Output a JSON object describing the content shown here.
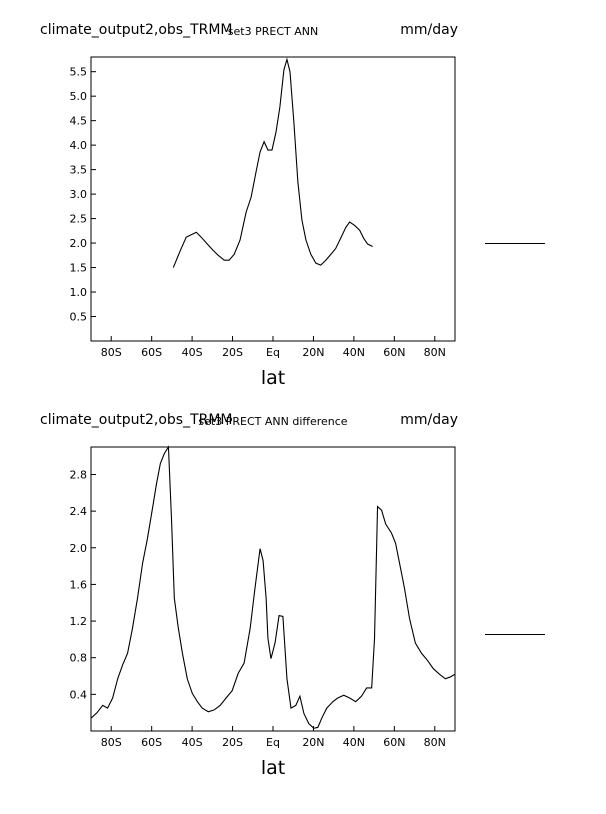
{
  "chart_data": [
    {
      "type": "line",
      "title": "climate_output2,obs_TRMM",
      "subtitle": "set3 PRECT ANN",
      "units": "mm/day",
      "x_label": "lat",
      "xlim": [
        -90,
        90
      ],
      "xticks": [
        {
          "value": -80,
          "label": "80S"
        },
        {
          "value": -60,
          "label": "60S"
        },
        {
          "value": -40,
          "label": "40S"
        },
        {
          "value": -20,
          "label": "20S"
        },
        {
          "value": 0,
          "label": "Eq"
        },
        {
          "value": 20,
          "label": "20N"
        },
        {
          "value": 40,
          "label": "40N"
        },
        {
          "value": 60,
          "label": "60N"
        },
        {
          "value": 80,
          "label": "80N"
        }
      ],
      "ylim": [
        0,
        5.8
      ],
      "yticks": [
        0.5,
        {
          "value": 1,
          "label": "1.0"
        },
        1.5,
        {
          "value": 2,
          "label": "2.0"
        },
        2.5,
        {
          "value": 3,
          "label": "3.0"
        },
        3.5,
        {
          "value": 4,
          "label": "4.0"
        },
        4.5,
        {
          "value": 5,
          "label": "5.0"
        },
        5.5
      ],
      "x": [
        -49.3,
        -45.8,
        -42.9,
        -39.9,
        -37.9,
        -35.5,
        -32.5,
        -29.6,
        -27.1,
        -24.1,
        -21.7,
        -19.2,
        -16.3,
        -13.3,
        -10.8,
        -8.4,
        -6.4,
        -4.4,
        -2.5,
        -0.5,
        1.5,
        3.4,
        5.4,
        6.9,
        8.4,
        10.3,
        12.3,
        14.3,
        16.3,
        18.7,
        21.2,
        23.6,
        26.1,
        28.6,
        31.0,
        33.5,
        36.0,
        37.9,
        40.4,
        42.9,
        44.8,
        46.8,
        49.3
      ],
      "series": [
        {
          "color": "#000000",
          "values": [
            1.5,
            1.85,
            2.12,
            2.18,
            2.22,
            2.12,
            1.98,
            1.85,
            1.75,
            1.65,
            1.65,
            1.77,
            2.06,
            2.63,
            2.94,
            3.45,
            3.86,
            4.07,
            3.9,
            3.9,
            4.27,
            4.78,
            5.54,
            5.75,
            5.5,
            4.48,
            3.25,
            2.47,
            2.06,
            1.77,
            1.59,
            1.55,
            1.65,
            1.77,
            1.89,
            2.1,
            2.32,
            2.43,
            2.36,
            2.26,
            2.1,
            1.98,
            1.93
          ]
        }
      ]
    },
    {
      "type": "line",
      "title": "climate_output2,obs_TRMM",
      "subtitle": "set3 PRECT ANN difference",
      "units": "mm/day",
      "x_label": "lat",
      "xlim": [
        -90,
        90
      ],
      "xticks": [
        {
          "value": -80,
          "label": "80S"
        },
        {
          "value": -60,
          "label": "60S"
        },
        {
          "value": -40,
          "label": "40S"
        },
        {
          "value": -20,
          "label": "20S"
        },
        {
          "value": 0,
          "label": "Eq"
        },
        {
          "value": 20,
          "label": "20N"
        },
        {
          "value": 40,
          "label": "40N"
        },
        {
          "value": 60,
          "label": "60N"
        },
        {
          "value": 80,
          "label": "80N"
        }
      ],
      "ylim": [
        0,
        3.1
      ],
      "yticks": [
        0.4,
        0.8,
        1.2,
        1.6,
        {
          "value": 2,
          "label": "2.0"
        },
        2.4,
        2.8
      ],
      "x": [
        -90,
        -87,
        -84.2,
        -81.8,
        -79.3,
        -76.8,
        -74.4,
        -71.9,
        -69.5,
        -67,
        -64.5,
        -62.1,
        -59.6,
        -57.6,
        -55.7,
        -53.7,
        -51.7,
        -50.2,
        -48.8,
        -46.8,
        -44.8,
        -42.4,
        -39.9,
        -37.4,
        -35.0,
        -32.0,
        -29.1,
        -26.1,
        -23.2,
        -20.2,
        -17.2,
        -14.3,
        -11.3,
        -8.9,
        -6.4,
        -4.9,
        -3.4,
        -2.5,
        -1,
        1,
        3,
        4.9,
        6.9,
        8.9,
        11.3,
        13.3,
        15.3,
        17.7,
        20.2,
        22.2,
        24.1,
        26.6,
        29.6,
        32.0,
        35.0,
        37.9,
        40.9,
        43.8,
        46.3,
        48.8,
        50.2,
        51.7,
        53.7,
        55.7,
        58.6,
        60.6,
        62.6,
        65.0,
        67.5,
        70.4,
        73.4,
        76.4,
        79.3,
        82.3,
        85.2,
        87.7,
        90
      ],
      "series": [
        {
          "color": "#000000",
          "values": [
            0.14,
            0.2,
            0.28,
            0.25,
            0.36,
            0.57,
            0.72,
            0.85,
            1.12,
            1.45,
            1.83,
            2.1,
            2.43,
            2.7,
            2.92,
            3.03,
            3.1,
            2.32,
            1.45,
            1.12,
            0.85,
            0.57,
            0.41,
            0.32,
            0.25,
            0.21,
            0.23,
            0.28,
            0.36,
            0.44,
            0.63,
            0.74,
            1.12,
            1.56,
            1.99,
            1.86,
            1.45,
            1.01,
            0.79,
            0.96,
            1.26,
            1.25,
            0.57,
            0.25,
            0.28,
            0.38,
            0.19,
            0.08,
            0.03,
            0.04,
            0.14,
            0.25,
            0.32,
            0.36,
            0.39,
            0.36,
            0.32,
            0.38,
            0.47,
            0.47,
            1.01,
            2.45,
            2.41,
            2.26,
            2.16,
            2.05,
            1.83,
            1.56,
            1.23,
            0.96,
            0.85,
            0.77,
            0.68,
            0.62,
            0.57,
            0.59,
            0.62
          ]
        }
      ]
    }
  ]
}
